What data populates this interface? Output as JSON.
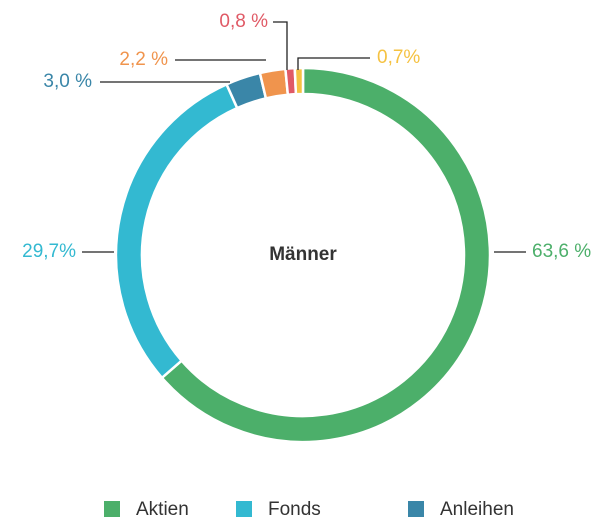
{
  "chart_data": {
    "type": "donut",
    "title": "Männer",
    "categories": [
      "Aktien",
      "Fonds",
      "Anleihen",
      null,
      null,
      null
    ],
    "values": [
      63.6,
      29.7,
      3.0,
      2.2,
      0.8,
      0.7
    ],
    "value_labels": [
      "63,6 %",
      "29,7%",
      "3,0 %",
      "2,2 %",
      "0,8 %",
      "0,7%"
    ],
    "colors": [
      "#4caf6a",
      "#33b9d1",
      "#3a86a8",
      "#f0944d",
      "#e05a66",
      "#f5c242"
    ]
  }
}
